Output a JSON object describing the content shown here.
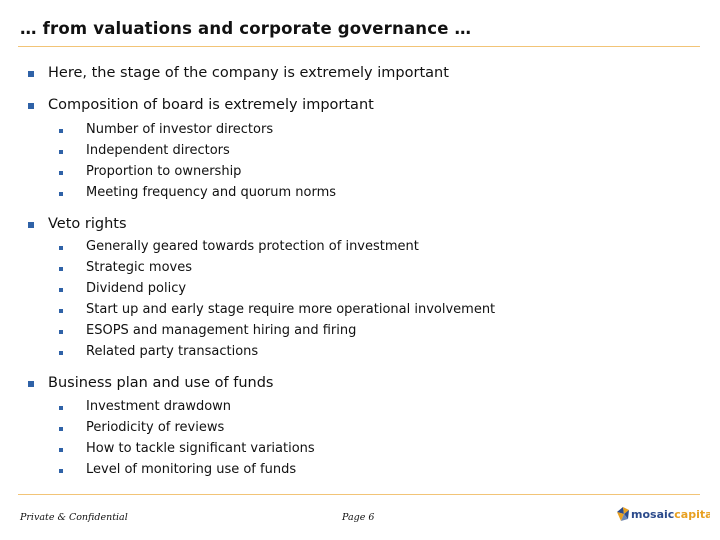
{
  "slide": {
    "title": "… from valuations and corporate governance …",
    "sections": [
      {
        "label": "Here, the stage of the company is extremely important",
        "items": []
      },
      {
        "label": "Composition of board is extremely important",
        "items": [
          "Number of investor directors",
          "Independent directors",
          "Proportion to ownership",
          "Meeting frequency and quorum norms"
        ]
      },
      {
        "label": "Veto rights",
        "items": [
          "Generally geared towards protection of investment",
          "Strategic moves",
          "Dividend policy",
          "Start up and early stage require more operational involvement",
          "ESOPS and management hiring and firing",
          "Related party transactions"
        ]
      },
      {
        "label": "Business plan and use of funds",
        "items": [
          "Investment drawdown",
          "Periodicity of reviews",
          "How to tackle significant variations",
          "Level of monitoring use of funds"
        ]
      }
    ]
  },
  "footer": {
    "confidential": "Private & Confidential",
    "page": "Page 6"
  },
  "logo": {
    "text_dark": "mosaic",
    "text_accent": "capital",
    "color_dark": "#2b4a8b",
    "color_accent": "#e8a020"
  },
  "colors": {
    "bullet": "#2f62a7",
    "rule": "#f2c477"
  }
}
